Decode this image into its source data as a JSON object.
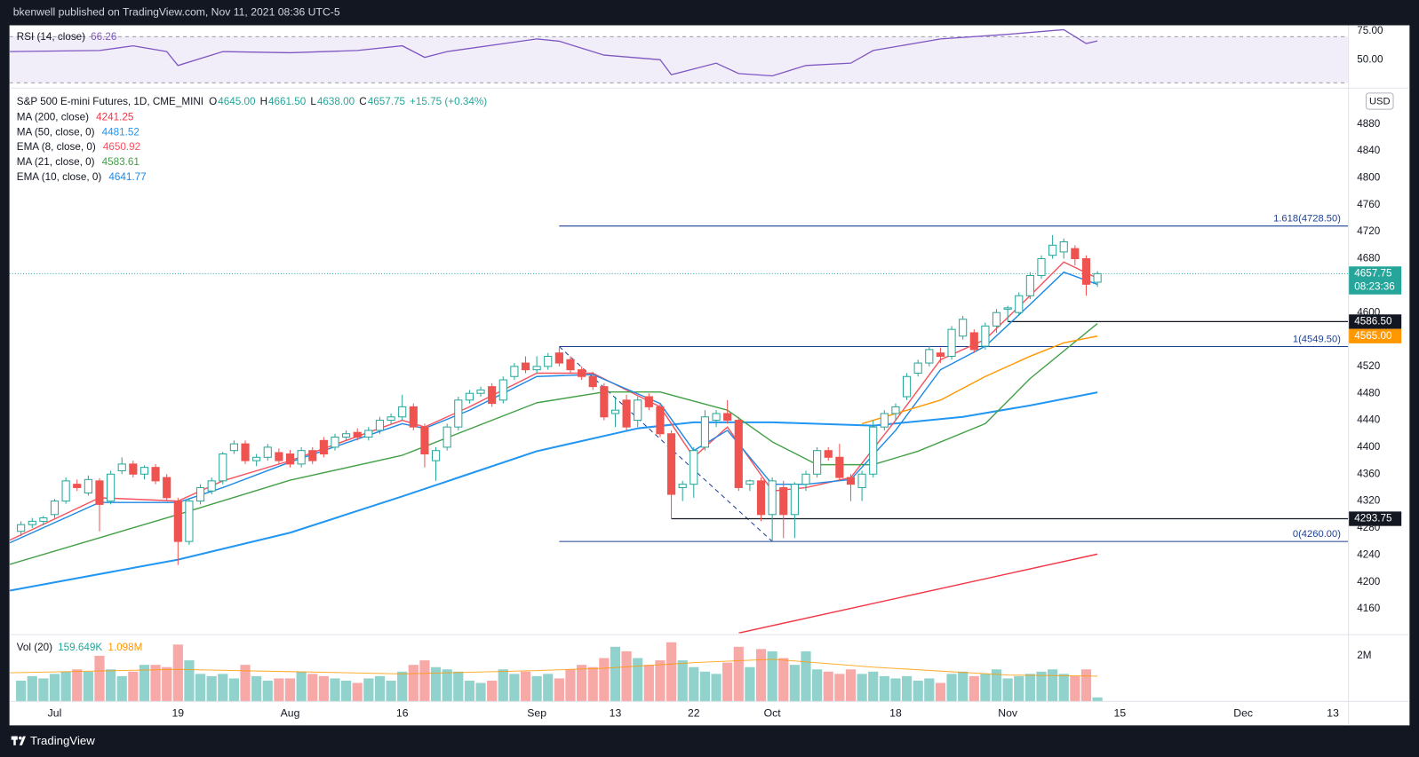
{
  "header": {
    "text": "bkenwell published on TradingView.com, Nov 11, 2021 08:36 UTC-5"
  },
  "footer": {
    "brand": "TradingView"
  },
  "chart_data": [
    {
      "type": "candlestick",
      "title": "S&P 500 E-mini Futures, 1D, CME_MINI",
      "ohlc_legend": [
        {
          "label": "O",
          "value": "4645.00"
        },
        {
          "label": "H",
          "value": "4661.50"
        },
        {
          "label": "L",
          "value": "4638.00"
        },
        {
          "label": "C",
          "value": "4657.75"
        },
        {
          "label": "",
          "value": "+15.75 (+0.34%)"
        }
      ],
      "currency": "USD",
      "up_color": "#26a69a",
      "down_color": "#ef5350",
      "xlim": [
        -1.03,
        118.35
      ],
      "xticks": [
        {
          "value": 3,
          "label": "Jul"
        },
        {
          "value": 14,
          "label": "19"
        },
        {
          "value": 24,
          "label": "Aug"
        },
        {
          "value": 34,
          "label": "16"
        },
        {
          "value": 46,
          "label": "Sep"
        },
        {
          "value": 53,
          "label": "13"
        },
        {
          "value": 60,
          "label": "22"
        },
        {
          "value": 67,
          "label": "Oct"
        },
        {
          "value": 78,
          "label": "18"
        },
        {
          "value": 88,
          "label": "Nov"
        },
        {
          "value": 98,
          "label": "15"
        },
        {
          "value": 109,
          "label": "Dec"
        },
        {
          "value": 117,
          "label": "13"
        }
      ],
      "ylim": [
        4123.7,
        4932.7
      ],
      "yticks": [
        4160,
        4200,
        4240,
        4280,
        4320,
        4360,
        4400,
        4440,
        4480,
        4520,
        4560,
        4600,
        4640,
        4680,
        4720,
        4760,
        4800,
        4840,
        4880
      ],
      "grid": false,
      "open": [
        4275,
        4285,
        4290,
        4300,
        4320,
        4345,
        4332,
        4350,
        4320,
        4365,
        4375,
        4360,
        4370,
        4355,
        4320,
        4260,
        4320,
        4335,
        4350,
        4395,
        4405,
        4380,
        4385,
        4392,
        4390,
        4375,
        4395,
        4410,
        4400,
        4415,
        4422,
        4415,
        4425,
        4440,
        4445,
        4460,
        4430,
        4380,
        4400,
        4430,
        4470,
        4480,
        4490,
        4470,
        4505,
        4525,
        4515,
        4520,
        4540,
        4530,
        4515,
        4505,
        4490,
        4450,
        4470,
        4440,
        4475,
        4460,
        4420,
        4340,
        4345,
        4400,
        4440,
        4450,
        4440,
        4345,
        4350,
        4300,
        4340,
        4300,
        4345,
        4360,
        4395,
        4385,
        4355,
        4340,
        4360,
        4430,
        4450,
        4475,
        4510,
        4525,
        4540,
        4535,
        4565,
        4570,
        4550,
        4580,
        4605,
        4600,
        4625,
        4655,
        4685,
        4690,
        4695,
        4680,
        4645
      ],
      "high": [
        4290,
        4295,
        4298,
        4323,
        4355,
        4352,
        4358,
        4354,
        4365,
        4385,
        4380,
        4373,
        4375,
        4360,
        4325,
        4325,
        4345,
        4355,
        4393,
        4410,
        4410,
        4390,
        4405,
        4398,
        4396,
        4400,
        4400,
        4415,
        4420,
        4425,
        4428,
        4430,
        4445,
        4450,
        4478,
        4465,
        4435,
        4400,
        4435,
        4475,
        4485,
        4490,
        4495,
        4505,
        4525,
        4535,
        4535,
        4540,
        4548,
        4535,
        4520,
        4512,
        4495,
        4475,
        4478,
        4475,
        4480,
        4465,
        4425,
        4350,
        4400,
        4455,
        4455,
        4470,
        4445,
        4352,
        4355,
        4355,
        4350,
        4348,
        4365,
        4400,
        4400,
        4405,
        4360,
        4365,
        4440,
        4455,
        4465,
        4510,
        4530,
        4550,
        4548,
        4580,
        4595,
        4575,
        4585,
        4605,
        4610,
        4630,
        4660,
        4685,
        4715,
        4710,
        4700,
        4685,
        4661.5
      ],
      "low": [
        4268,
        4280,
        4284,
        4295,
        4316,
        4335,
        4328,
        4275,
        4315,
        4360,
        4355,
        4352,
        4345,
        4320,
        4225,
        4255,
        4315,
        4330,
        4345,
        4390,
        4375,
        4372,
        4380,
        4375,
        4370,
        4370,
        4375,
        4385,
        4395,
        4410,
        4410,
        4410,
        4420,
        4435,
        4440,
        4425,
        4370,
        4350,
        4395,
        4425,
        4465,
        4475,
        4460,
        4465,
        4500,
        4510,
        4510,
        4515,
        4520,
        4510,
        4500,
        4485,
        4440,
        4430,
        4425,
        4430,
        4455,
        4415,
        4293.75,
        4320,
        4325,
        4395,
        4430,
        4435,
        4335,
        4335,
        4290,
        4260,
        4265,
        4265,
        4335,
        4355,
        4380,
        4350,
        4320,
        4320,
        4355,
        4425,
        4440,
        4470,
        4505,
        4520,
        4525,
        4530,
        4560,
        4540,
        4545,
        4570,
        4586.5,
        4595,
        4620,
        4650,
        4680,
        4680,
        4670,
        4625,
        4638
      ],
      "close": [
        4285,
        4290,
        4295,
        4320,
        4350,
        4340,
        4352,
        4315,
        4360,
        4375,
        4360,
        4370,
        4350,
        4325,
        4260,
        4320,
        4340,
        4350,
        4390,
        4405,
        4380,
        4385,
        4400,
        4380,
        4375,
        4395,
        4380,
        4390,
        4415,
        4420,
        4415,
        4425,
        4440,
        4445,
        4460,
        4430,
        4390,
        4395,
        4430,
        4470,
        4480,
        4485,
        4465,
        4500,
        4520,
        4515,
        4520,
        4535,
        4525,
        4515,
        4505,
        4490,
        4445,
        4455,
        4430,
        4470,
        4460,
        4420,
        4330,
        4345,
        4395,
        4445,
        4450,
        4440,
        4340,
        4350,
        4300,
        4350,
        4300,
        4345,
        4360,
        4395,
        4385,
        4355,
        4345,
        4360,
        4430,
        4450,
        4460,
        4505,
        4525,
        4545,
        4535,
        4575,
        4590,
        4545,
        4580,
        4600,
        4607,
        4625,
        4655,
        4680,
        4700,
        4705,
        4680,
        4642,
        4657.75
      ],
      "series": [
        {
          "name": "MA (200, close)",
          "color": "#f23645",
          "last_label": "4241.25",
          "x": [
            64,
            96
          ],
          "values": [
            4124,
            4241.25
          ]
        },
        {
          "name": "MA (50, close, 0)",
          "color": "#2196f3",
          "last_label": "4481.52",
          "x": [
            -1,
            14,
            24,
            34,
            46,
            55,
            60,
            67,
            76,
            84,
            90,
            96
          ],
          "values": [
            4187,
            4233,
            4273,
            4327,
            4394,
            4428,
            4437,
            4437,
            4432,
            4445,
            4462,
            4481.52
          ]
        },
        {
          "name": "EMA (8, close, 0)",
          "color": "#f7525f",
          "last_label": "4650.92",
          "x": [
            -1,
            7,
            14,
            18,
            24,
            34,
            36,
            40,
            46,
            51,
            57,
            60,
            63,
            67,
            70,
            74,
            78,
            82,
            86,
            90,
            93,
            96
          ],
          "values": [
            4262,
            4325,
            4320,
            4350,
            4380,
            4440,
            4430,
            4460,
            4510,
            4510,
            4460,
            4385,
            4430,
            4335,
            4340,
            4355,
            4440,
            4530,
            4560,
            4625,
            4675,
            4650.92
          ]
        },
        {
          "name": "MA (21, close, 0)",
          "color": "#43a047",
          "last_label": "4583.61",
          "x": [
            -1,
            14,
            24,
            34,
            46,
            52,
            57,
            63,
            67,
            71,
            76,
            80,
            86,
            90,
            96
          ],
          "values": [
            4226,
            4300,
            4351,
            4388,
            4466,
            4482,
            4482,
            4455,
            4408,
            4374,
            4374,
            4394,
            4435,
            4502,
            4583.61
          ]
        },
        {
          "name": "EMA (10, close, 0)",
          "color": "#1e88e5",
          "last_label": "4641.77",
          "x": [
            -1,
            7,
            14,
            18,
            24,
            34,
            36,
            40,
            46,
            51,
            57,
            60,
            63,
            67,
            70,
            74,
            78,
            82,
            86,
            90,
            93,
            96
          ],
          "values": [
            4258,
            4318,
            4318,
            4340,
            4378,
            4435,
            4428,
            4455,
            4505,
            4508,
            4465,
            4395,
            4425,
            4345,
            4345,
            4352,
            4425,
            4515,
            4550,
            4612,
            4660,
            4641.77
          ]
        },
        {
          "color": "#ff9800",
          "axis_label": "4565.00",
          "x": [
            75,
            82,
            86,
            90,
            93,
            96
          ],
          "values": [
            4435,
            4470,
            4505,
            4535,
            4555,
            4565
          ]
        }
      ],
      "levels": [
        {
          "value": 4728.5,
          "label": "1.618(4728.50)",
          "from": 48,
          "color": "#1c3f94"
        },
        {
          "value": 4549.5,
          "label": "1(4549.50)",
          "from": 48,
          "color": "#1c3f94"
        },
        {
          "value": 4260,
          "label": "0(4260.00)",
          "from": 48,
          "color": "#1c3f94"
        }
      ],
      "horizontal_lines": [
        {
          "value": 4586.5,
          "label": "4586.50",
          "from": 88,
          "color": "#131722"
        },
        {
          "value": 4293.75,
          "label": "4293.75",
          "from": 58,
          "color": "#131722"
        }
      ],
      "trend_line": {
        "x": [
          48,
          67
        ],
        "values": [
          4549.5,
          4260
        ],
        "color": "#1c3f94"
      },
      "last_price": {
        "value": 4657.75,
        "label": "4657.75",
        "countdown": "08:23:36",
        "color": "#26a69a"
      }
    },
    {
      "type": "line",
      "title": "RSI (14, close)",
      "value_label": "66.26",
      "color": "#7e57c2",
      "ylim": [
        25.8,
        79.8
      ],
      "yticks": [
        {
          "value": 75,
          "label": "75.00"
        },
        {
          "value": 50,
          "label": "50.00"
        }
      ],
      "bands": [
        30,
        70
      ],
      "x": [
        -1,
        7,
        10,
        13,
        14,
        18,
        24,
        30,
        34,
        36,
        38,
        46,
        48,
        52,
        57,
        58,
        62,
        64,
        67,
        70,
        74,
        76,
        82,
        88,
        93,
        95,
        96
      ],
      "values": [
        57,
        58,
        62,
        57,
        45,
        57,
        56,
        58,
        62,
        52,
        57,
        68,
        66,
        54,
        50,
        37,
        47,
        38,
        36,
        45,
        47,
        58,
        68,
        72,
        76,
        64,
        66.26
      ]
    },
    {
      "type": "bar",
      "title": "Vol (20)",
      "value_label": "159.649K",
      "ylim": [
        0,
        2920000
      ],
      "yticks": [
        {
          "value": 2000000,
          "label": "2M"
        }
      ],
      "values": [
        900000,
        1100000,
        1000000,
        1200000,
        1300000,
        1400000,
        1300000,
        2000000,
        1400000,
        1100000,
        1300000,
        1600000,
        1600000,
        1500000,
        2500000,
        1800000,
        1200000,
        1100000,
        1200000,
        1000000,
        1600000,
        1100000,
        900000,
        1000000,
        1000000,
        1300000,
        1200000,
        1100000,
        1000000,
        900000,
        800000,
        1000000,
        1100000,
        900000,
        1300000,
        1600000,
        1800000,
        1500000,
        1400000,
        1300000,
        900000,
        800000,
        900000,
        1400000,
        1200000,
        1300000,
        1100000,
        1200000,
        1000000,
        1400000,
        1600000,
        1500000,
        1900000,
        2400000,
        2200000,
        1900000,
        1600000,
        1800000,
        2600000,
        1800000,
        1500000,
        1300000,
        1200000,
        1700000,
        2400000,
        1500000,
        2300000,
        2200000,
        1900000,
        1600000,
        2200000,
        1400000,
        1300000,
        1200000,
        1400000,
        1200000,
        1300000,
        1100000,
        1000000,
        1100000,
        900000,
        1000000,
        800000,
        1200000,
        1300000,
        1100000,
        1200000,
        1400000,
        1000000,
        1100000,
        1200000,
        1300000,
        1400000,
        1200000,
        1100000,
        1400000,
        159649
      ],
      "ma": {
        "color": "#ff9800",
        "value_label": "1.098M",
        "x": [
          -1,
          14,
          24,
          34,
          46,
          52,
          60,
          67,
          76,
          88,
          96
        ],
        "values": [
          1250000,
          1400000,
          1300000,
          1200000,
          1350000,
          1450000,
          1700000,
          1850000,
          1500000,
          1150000,
          1098000
        ]
      }
    }
  ]
}
